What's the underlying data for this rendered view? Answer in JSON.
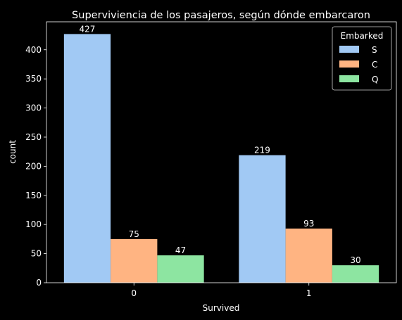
{
  "chart_data": {
    "type": "bar",
    "title": "Superviviencia de los pasajeros, según dónde embarcaron",
    "xlabel": "Survived",
    "ylabel": "count",
    "categories": [
      "0",
      "1"
    ],
    "ylim": [
      0,
      448
    ],
    "yticks": [
      0,
      50,
      100,
      150,
      200,
      250,
      300,
      350,
      400
    ],
    "grid": false,
    "legend": {
      "title": "Embarked",
      "placement": "top-right"
    },
    "series": [
      {
        "name": "S",
        "values": [
          427,
          219
        ],
        "color": "#a1c9f4"
      },
      {
        "name": "C",
        "values": [
          75,
          93
        ],
        "color": "#ffb482"
      },
      {
        "name": "Q",
        "values": [
          47,
          30
        ],
        "color": "#8de5a1"
      }
    ],
    "data_labels": [
      [
        "427",
        "219"
      ],
      [
        "75",
        "93"
      ],
      [
        "47",
        "30"
      ]
    ]
  }
}
